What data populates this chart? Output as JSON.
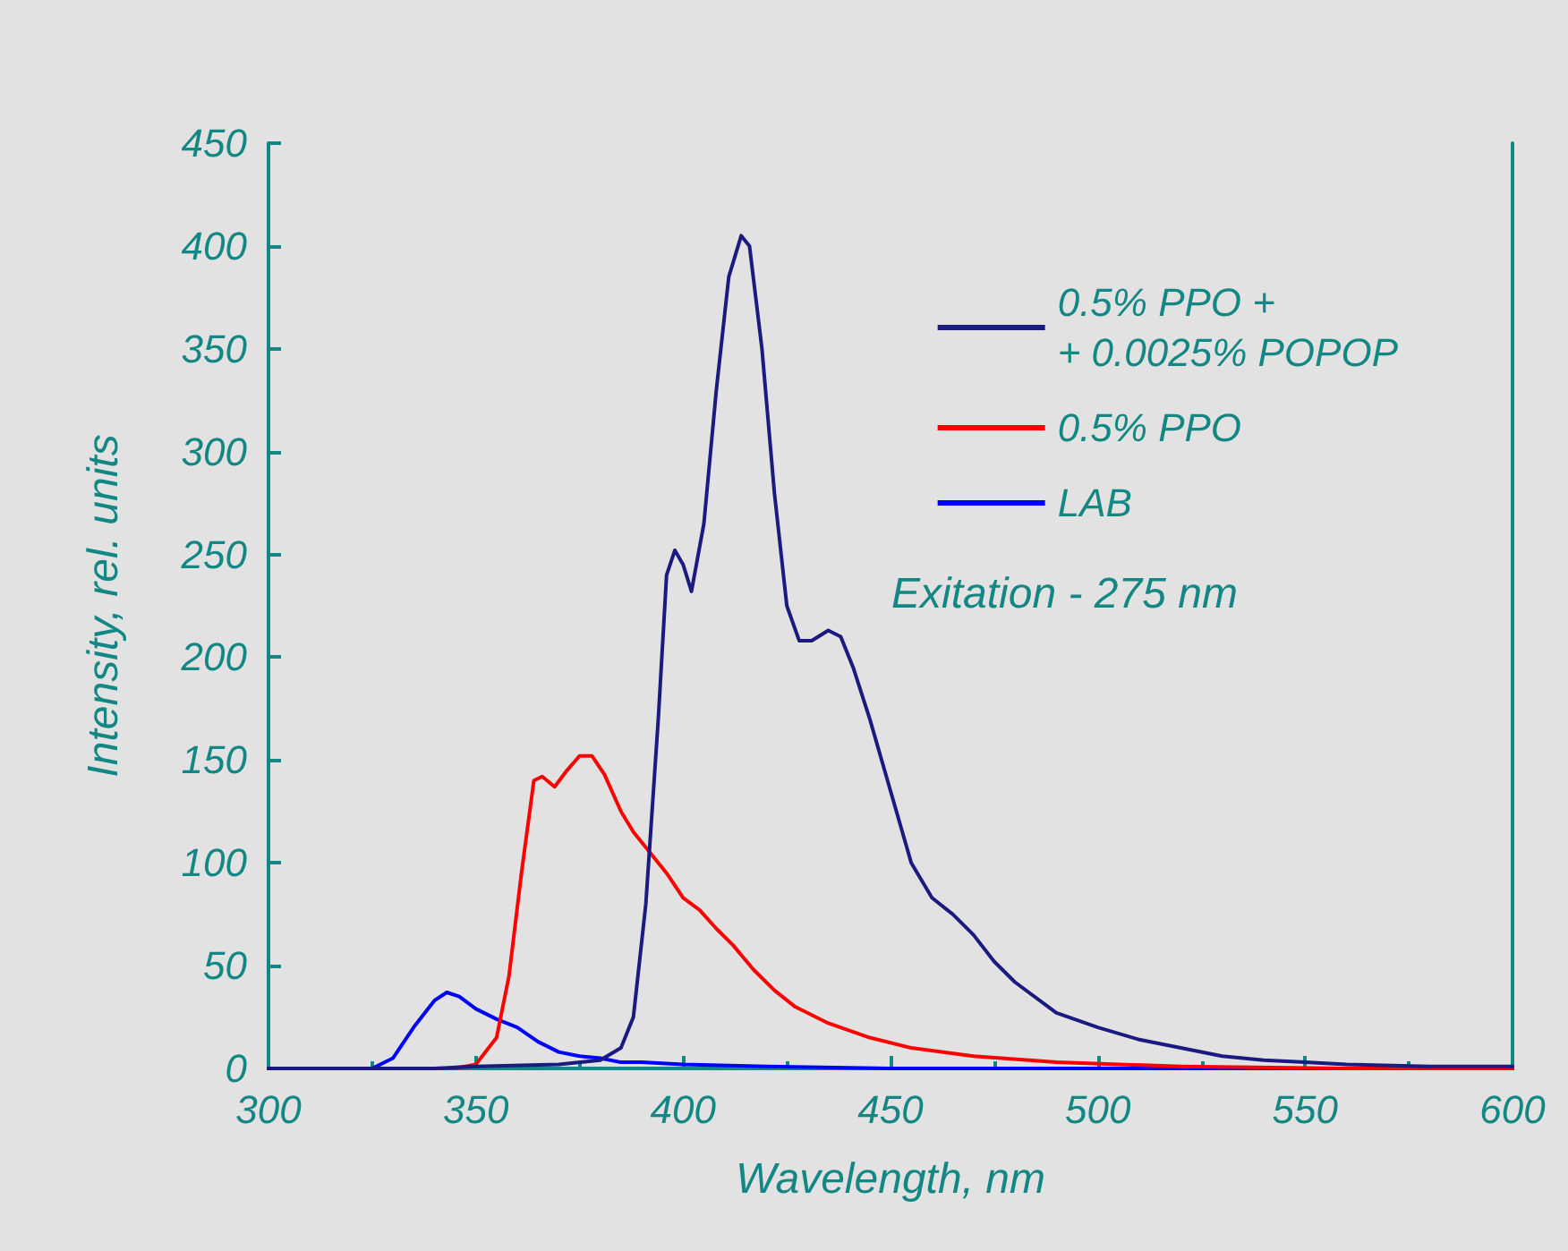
{
  "chart_data": {
    "type": "line",
    "xlabel": "Wavelength, nm",
    "ylabel": "Intensity, rel. units",
    "annotations": [
      "Exitation - 275 nm"
    ],
    "xlim": [
      300,
      600
    ],
    "xticks": [
      300,
      350,
      400,
      450,
      500,
      550,
      600
    ],
    "ylim": [
      0,
      450
    ],
    "yticks": [
      0,
      50,
      100,
      150,
      200,
      250,
      300,
      350,
      400,
      450
    ],
    "grid": false,
    "legend": "top right",
    "marker": "none",
    "line_style": "solid",
    "series": [
      {
        "name": "0.5% PPO +\n+ 0.0025% POPOP",
        "color": "#1a1a80",
        "x": [
          300,
          340,
          350,
          370,
          380,
          385,
          388,
          391,
          394,
          396,
          398,
          400,
          402,
          405,
          408,
          411,
          414,
          416,
          419,
          422,
          425,
          428,
          431,
          435,
          438,
          441,
          445,
          450,
          455,
          460,
          465,
          470,
          475,
          480,
          490,
          500,
          510,
          520,
          530,
          540,
          550,
          560,
          580,
          600
        ],
        "values": [
          0,
          0,
          1,
          2,
          4,
          10,
          25,
          80,
          170,
          240,
          252,
          245,
          232,
          265,
          330,
          385,
          405,
          400,
          350,
          280,
          225,
          208,
          208,
          213,
          210,
          195,
          170,
          135,
          100,
          83,
          75,
          65,
          52,
          42,
          27,
          20,
          14,
          10,
          6,
          4,
          3,
          2,
          1,
          1
        ]
      },
      {
        "name": "0.5% PPO",
        "color": "#ff0000",
        "x": [
          300,
          345,
          350,
          355,
          358,
          361,
          364,
          366,
          369,
          372,
          375,
          378,
          381,
          385,
          388,
          392,
          396,
          400,
          404,
          408,
          412,
          417,
          422,
          427,
          435,
          445,
          455,
          470,
          490,
          520,
          560,
          600
        ],
        "values": [
          0,
          0,
          2,
          15,
          45,
          95,
          140,
          142,
          137,
          145,
          152,
          152,
          143,
          125,
          115,
          105,
          95,
          83,
          77,
          68,
          60,
          48,
          38,
          30,
          22,
          15,
          10,
          6,
          3,
          1,
          0,
          0
        ]
      },
      {
        "name": "LAB",
        "color": "#0000ff",
        "x": [
          300,
          325,
          330,
          335,
          340,
          343,
          346,
          350,
          355,
          360,
          365,
          370,
          375,
          380,
          385,
          390,
          400,
          420,
          450,
          500,
          600
        ],
        "values": [
          0,
          0,
          5,
          20,
          33,
          37,
          35,
          29,
          24,
          20,
          13,
          8,
          6,
          5,
          3,
          3,
          2,
          1,
          0,
          0,
          0
        ]
      }
    ]
  }
}
